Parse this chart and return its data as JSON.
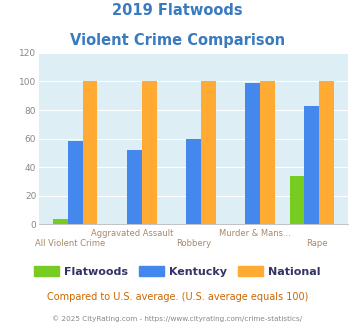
{
  "title_line1": "2019 Flatwoods",
  "title_line2": "Violent Crime Comparison",
  "title_color": "#3a7abf",
  "categories": [
    "All Violent Crime",
    "Aggravated Assault",
    "Robbery",
    "Murder & Mans...",
    "Rape"
  ],
  "cat_top": [
    "",
    "Aggravated Assault",
    "",
    "Murder & Mans...",
    ""
  ],
  "cat_bot": [
    "All Violent Crime",
    "",
    "Robbery",
    "",
    "Rape"
  ],
  "flatwoods": [
    4,
    0,
    0,
    0,
    34
  ],
  "kentucky": [
    58,
    52,
    60,
    99,
    83
  ],
  "national": [
    100,
    100,
    100,
    100,
    100
  ],
  "flatwoods_color": "#77cc22",
  "kentucky_color": "#4488ee",
  "national_color": "#ffaa33",
  "ylim": [
    0,
    120
  ],
  "yticks": [
    0,
    20,
    40,
    60,
    80,
    100,
    120
  ],
  "bg_color": "#ddeef5",
  "legend_labels": [
    "Flatwoods",
    "Kentucky",
    "National"
  ],
  "legend_text_color": "#333366",
  "footer_text": "Compared to U.S. average. (U.S. average equals 100)",
  "footer_color": "#cc6600",
  "credit_text": "© 2025 CityRating.com - https://www.cityrating.com/crime-statistics/",
  "credit_color": "#888888",
  "xtick_color": "#aa8866",
  "ytick_color": "#888888"
}
